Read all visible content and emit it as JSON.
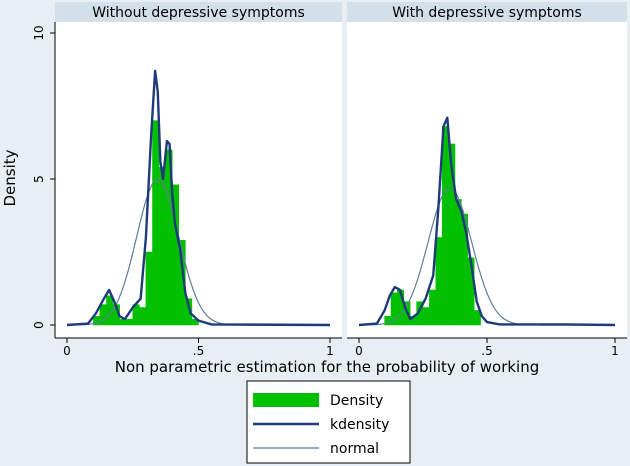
{
  "chart_data": {
    "type": "histogram",
    "shared": {
      "xlabel": "Non parametric estimation for the probability of  working",
      "ylabel": "Density",
      "xlim": [
        -0.05,
        1.0
      ],
      "ylim": [
        0,
        10.5
      ],
      "xticks": [
        {
          "v": 0,
          "label": "0"
        },
        {
          "v": 0.5,
          "label": ".5"
        },
        {
          "v": 1,
          "label": "1"
        }
      ],
      "yticks": [
        {
          "v": 0,
          "label": "0"
        },
        {
          "v": 5,
          "label": "5"
        },
        {
          "v": 10,
          "label": "10"
        }
      ],
      "grid": false,
      "legend_position": "bottom-center"
    },
    "legend": [
      {
        "key": "density",
        "label": "Density",
        "color": "#00c000"
      },
      {
        "key": "kdensity",
        "label": "kdensity",
        "color": "#1f3a7a"
      },
      {
        "key": "normal",
        "label": "normal",
        "color": "#5f7f96"
      }
    ],
    "panels": [
      {
        "title": "Without depressive symptoms",
        "histogram": {
          "bin_width": 0.025,
          "bins": [
            {
              "x0": 0.1,
              "value": 0.3
            },
            {
              "x0": 0.125,
              "value": 0.7
            },
            {
              "x0": 0.15,
              "value": 1.0
            },
            {
              "x0": 0.175,
              "value": 0.7
            },
            {
              "x0": 0.2,
              "value": 0.2
            },
            {
              "x0": 0.225,
              "value": 0.2
            },
            {
              "x0": 0.25,
              "value": 0.7
            },
            {
              "x0": 0.275,
              "value": 0.6
            },
            {
              "x0": 0.3,
              "value": 2.5
            },
            {
              "x0": 0.325,
              "value": 7.0
            },
            {
              "x0": 0.35,
              "value": 5.4
            },
            {
              "x0": 0.375,
              "value": 6.0
            },
            {
              "x0": 0.4,
              "value": 4.8
            },
            {
              "x0": 0.425,
              "value": 2.9
            },
            {
              "x0": 0.45,
              "value": 0.9
            },
            {
              "x0": 0.475,
              "value": 0.2
            }
          ]
        },
        "kdensity": {
          "x": [
            0.0,
            0.08,
            0.11,
            0.14,
            0.16,
            0.18,
            0.2,
            0.22,
            0.25,
            0.28,
            0.3,
            0.32,
            0.335,
            0.345,
            0.355,
            0.365,
            0.38,
            0.39,
            0.4,
            0.41,
            0.43,
            0.45,
            0.47,
            0.5,
            0.55,
            1.0
          ],
          "y": [
            0,
            0.05,
            0.4,
            0.9,
            1.2,
            0.8,
            0.3,
            0.2,
            0.6,
            0.9,
            3.0,
            6.5,
            8.7,
            8.0,
            5.6,
            5.0,
            6.3,
            6.2,
            4.5,
            3.5,
            2.6,
            1.1,
            0.4,
            0.15,
            0.02,
            0
          ]
        },
        "normal": {
          "mean": 0.345,
          "sd": 0.08
        }
      },
      {
        "title": "With depressive symptoms",
        "histogram": {
          "bin_width": 0.025,
          "bins": [
            {
              "x0": 0.1,
              "value": 0.3
            },
            {
              "x0": 0.125,
              "value": 1.1
            },
            {
              "x0": 0.15,
              "value": 1.2
            },
            {
              "x0": 0.175,
              "value": 0.8
            },
            {
              "x0": 0.2,
              "value": 0.3
            },
            {
              "x0": 0.225,
              "value": 0.8
            },
            {
              "x0": 0.25,
              "value": 0.6
            },
            {
              "x0": 0.275,
              "value": 1.2
            },
            {
              "x0": 0.3,
              "value": 3.0
            },
            {
              "x0": 0.325,
              "value": 6.8
            },
            {
              "x0": 0.35,
              "value": 6.2
            },
            {
              "x0": 0.375,
              "value": 4.3
            },
            {
              "x0": 0.4,
              "value": 3.8
            },
            {
              "x0": 0.425,
              "value": 2.3
            },
            {
              "x0": 0.45,
              "value": 0.5
            }
          ]
        },
        "kdensity": {
          "x": [
            0.0,
            0.07,
            0.1,
            0.12,
            0.14,
            0.16,
            0.18,
            0.2,
            0.23,
            0.26,
            0.29,
            0.31,
            0.33,
            0.345,
            0.36,
            0.38,
            0.4,
            0.42,
            0.44,
            0.46,
            0.48,
            0.5,
            0.55,
            0.8,
            1.0
          ],
          "y": [
            0,
            0.05,
            0.5,
            1.0,
            1.3,
            1.2,
            0.6,
            0.2,
            0.4,
            0.9,
            1.7,
            4.0,
            6.8,
            7.1,
            5.5,
            4.3,
            3.9,
            3.1,
            2.0,
            0.8,
            0.3,
            0.1,
            0.02,
            0.02,
            0
          ]
        },
        "normal": {
          "mean": 0.355,
          "sd": 0.085
        }
      }
    ]
  }
}
